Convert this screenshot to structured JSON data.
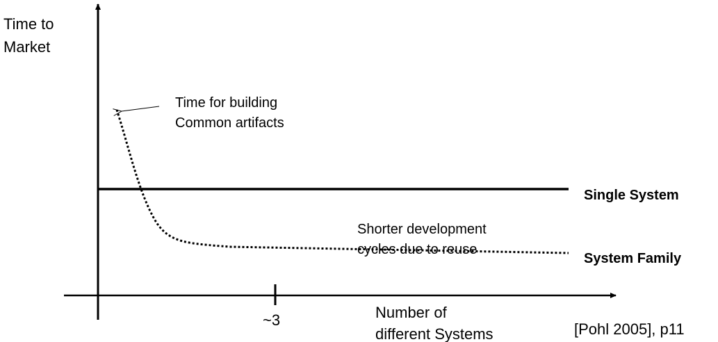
{
  "y_axis": {
    "label_lines": [
      "Time to",
      "Market"
    ]
  },
  "x_axis": {
    "label_lines": [
      "Number of",
      "different Systems"
    ],
    "tick_label": "~3"
  },
  "series": [
    {
      "name": "Single System",
      "style": "solid"
    },
    {
      "name": "System Family",
      "style": "dotted"
    }
  ],
  "annotations": {
    "common_artifacts": [
      "Time for building",
      "Common artifacts"
    ],
    "reuse": [
      "Shorter development",
      "cycles due to reuse"
    ]
  },
  "citation": "[Pohl 2005], p11",
  "colors": {
    "ink": "#000000",
    "background": "#ffffff"
  }
}
